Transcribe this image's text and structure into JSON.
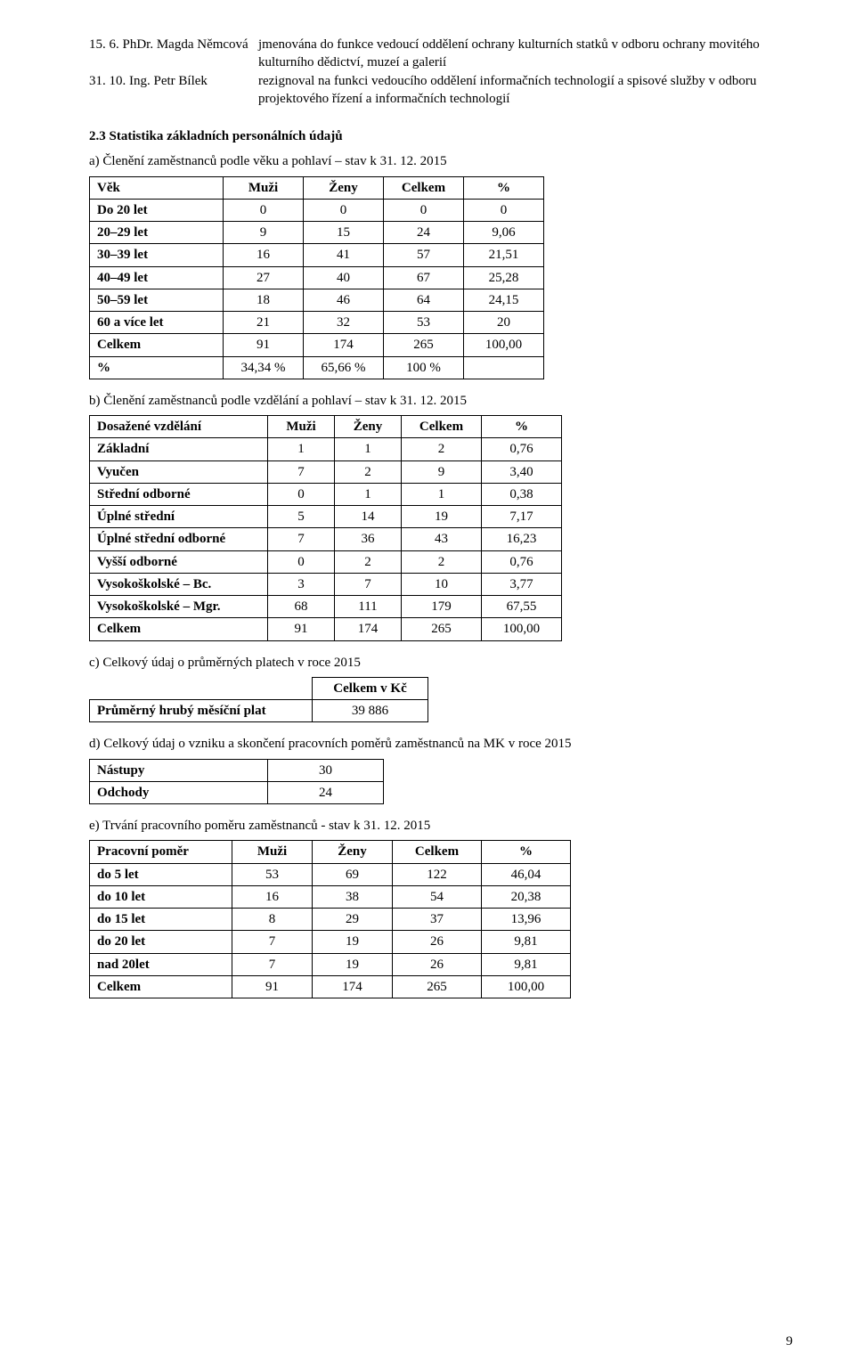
{
  "appointments": [
    {
      "date": "15. 6. PhDr. Magda Němcová",
      "desc": "jmenována do funkce vedoucí oddělení ochrany kulturních statků v odboru ochrany movitého kulturního dědictví, muzeí a galerií"
    },
    {
      "date": "31. 10. Ing. Petr Bílek",
      "desc": "rezignoval na funkci vedoucího oddělení informačních technologií a spisové služby v odboru projektového řízení a informačních technologií"
    }
  ],
  "sec23_title": "2.3 Statistika základních personálních údajů",
  "subA": "a) Členění zaměstnanců podle věku a pohlaví – stav k 31. 12. 2015",
  "tblA": {
    "headers": [
      "Věk",
      "Muži",
      "Ženy",
      "Celkem",
      "%"
    ],
    "rows": [
      [
        "Do 20 let",
        "0",
        "0",
        "0",
        "0"
      ],
      [
        "20–29 let",
        "9",
        "15",
        "24",
        "9,06"
      ],
      [
        "30–39 let",
        "16",
        "41",
        "57",
        "21,51"
      ],
      [
        "40–49 let",
        "27",
        "40",
        "67",
        "25,28"
      ],
      [
        "50–59 let",
        "18",
        "46",
        "64",
        "24,15"
      ],
      [
        "60 a více let",
        "21",
        "32",
        "53",
        "20"
      ],
      [
        "Celkem",
        "91",
        "174",
        "265",
        "100,00"
      ],
      [
        "%",
        "34,34 %",
        "65,66 %",
        "100 %",
        ""
      ]
    ],
    "widths": [
      150,
      90,
      90,
      90,
      90
    ],
    "bold_rows": [
      0,
      1,
      2,
      3,
      4,
      5,
      6,
      7
    ]
  },
  "subB": "b) Členění zaměstnanců podle vzdělání a pohlaví – stav k 31. 12. 2015",
  "tblB": {
    "headers": [
      "Dosažené vzdělání",
      "Muži",
      "Ženy",
      "Celkem",
      "%"
    ],
    "rows": [
      [
        "Základní",
        "1",
        "1",
        "2",
        "0,76"
      ],
      [
        "Vyučen",
        "7",
        "2",
        "9",
        "3,40"
      ],
      [
        "Střední odborné",
        "0",
        "1",
        "1",
        "0,38"
      ],
      [
        "Úplné střední",
        "5",
        "14",
        "19",
        "7,17"
      ],
      [
        "Úplné střední odborné",
        "7",
        "36",
        "43",
        "16,23"
      ],
      [
        "Vyšší odborné",
        "0",
        "2",
        "2",
        "0,76"
      ],
      [
        "Vysokoškolské – Bc.",
        "3",
        "7",
        "10",
        "3,77"
      ],
      [
        "Vysokoškolské – Mgr.",
        "68",
        "111",
        "179",
        "67,55"
      ],
      [
        "Celkem",
        "91",
        "174",
        "265",
        "100,00"
      ]
    ],
    "widths": [
      200,
      75,
      75,
      90,
      90
    ]
  },
  "subC": "c) Celkový údaj o průměrných platech v roce 2015",
  "tblC": {
    "headers": [
      "",
      "Celkem v Kč"
    ],
    "rows": [
      [
        "Průměrný hrubý měsíční plat",
        "39 886"
      ]
    ],
    "widths": [
      250,
      130
    ]
  },
  "subD": "d) Celkový údaj o vzniku a skončení pracovních poměrů zaměstnanců na MK v roce 2015",
  "tblD": {
    "rows": [
      [
        "Nástupy",
        "30"
      ],
      [
        "Odchody",
        "24"
      ]
    ],
    "widths": [
      200,
      130
    ]
  },
  "subE": "e) Trvání pracovního  poměru zaměstnanců - stav k 31. 12. 2015",
  "tblE": {
    "headers": [
      "Pracovní poměr",
      "Muži",
      "Ženy",
      "Celkem",
      "%"
    ],
    "rows": [
      [
        "do 5 let",
        "53",
        "69",
        "122",
        "46,04"
      ],
      [
        "do 10 let",
        "16",
        "38",
        "54",
        "20,38"
      ],
      [
        "do 15 let",
        "8",
        "29",
        "37",
        "13,96"
      ],
      [
        "do 20 let",
        "7",
        "19",
        "26",
        "9,81"
      ],
      [
        "nad 20let",
        "7",
        "19",
        "26",
        "9,81"
      ],
      [
        "Celkem",
        "91",
        "174",
        "265",
        "100,00"
      ]
    ],
    "widths": [
      160,
      90,
      90,
      100,
      100
    ]
  },
  "pageNumber": "9"
}
